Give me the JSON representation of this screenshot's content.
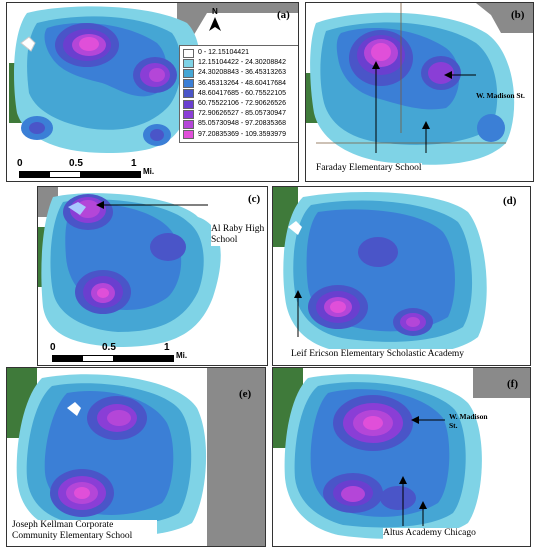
{
  "panels": {
    "a": {
      "label": "(a)"
    },
    "b": {
      "label": "(b)"
    },
    "c": {
      "label": "(c)"
    },
    "d": {
      "label": "(d)"
    },
    "e": {
      "label": "(e)"
    },
    "f": {
      "label": "(f)"
    }
  },
  "north_label": "N",
  "legend": [
    {
      "range": "0 - 12.15104421",
      "color": "#ffffff"
    },
    {
      "range": "12.15104422 - 24.30208842",
      "color": "#7fd3e6"
    },
    {
      "range": "24.30208843 - 36.45313263",
      "color": "#45a6d4"
    },
    {
      "range": "36.45313264 - 48.60417684",
      "color": "#3b7fd6"
    },
    {
      "range": "48.60417685 - 60.75522105",
      "color": "#4a55c8"
    },
    {
      "range": "60.75522106 - 72.90626526",
      "color": "#6a3fcf"
    },
    {
      "range": "72.90626527 - 85.05730947",
      "color": "#8a3ed6"
    },
    {
      "range": "85.05730948 - 97.20835368",
      "color": "#b446d8"
    },
    {
      "range": "97.20835369 - 109.3593979",
      "color": "#e04fd9"
    }
  ],
  "scale_a": {
    "zero": "0",
    "half": "0.5",
    "one": "1",
    "unit": "Mi."
  },
  "scale_c": {
    "zero": "0",
    "half": "0.5",
    "one": "1",
    "unit": "Mi."
  },
  "annotations": {
    "b_madison": "W. Madison St.",
    "b_faraday": "Faraday Elementary School",
    "c_alraby": "Al Raby High School",
    "d_leif": "Leif Ericson Elementary Scholastic Academy",
    "e_kellman": "Joseph Kellman Corporate Community Elementary School",
    "f_madison": "W. Madison St.",
    "f_altus": "Altus Academy Chicago"
  },
  "colors": {
    "park": "#3f7a3a",
    "outside": "#8a8a8a",
    "water": "#ffffff"
  }
}
